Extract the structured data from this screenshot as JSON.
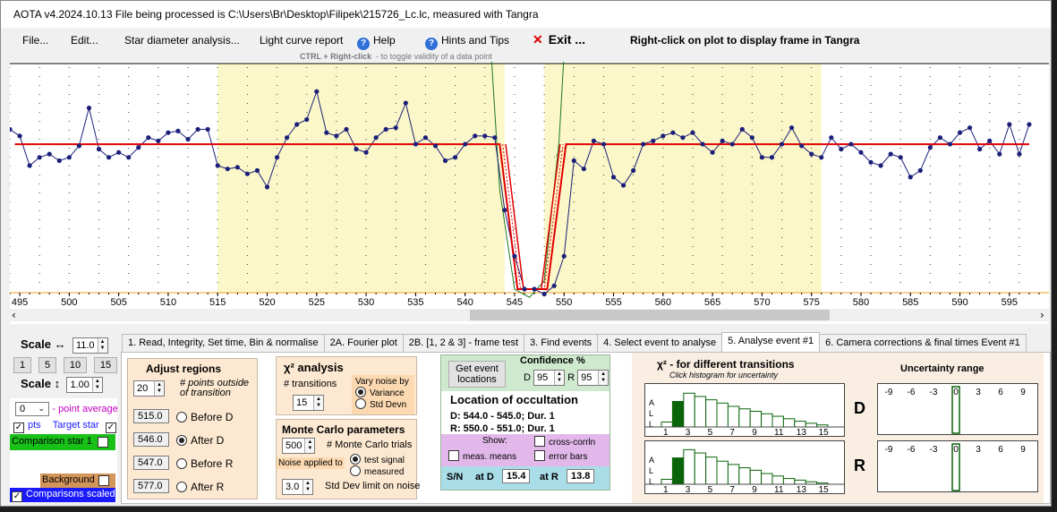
{
  "title": "AOTA v4.2024.10.13    File being processed is C:\\Users\\Br\\Desktop\\Filipek\\215726_Lc.lc, measured with Tangra",
  "menu": {
    "file": "File...",
    "edit": "Edit...",
    "star_diameter": "Star diameter analysis...",
    "light_curve": "Light curve report",
    "help": "Help",
    "hints": "Hints and Tips",
    "exit": "Exit ...",
    "right_click_hint": "Right-click on plot to display frame in Tangra"
  },
  "sub_hint": {
    "key": "CTRL + Right-click",
    "text": "- to toggle validity of a data point"
  },
  "plot": {
    "x_ticks": [
      "495",
      "500",
      "505",
      "510",
      "515",
      "520",
      "525",
      "530",
      "535",
      "540",
      "545",
      "550",
      "555",
      "560",
      "565",
      "570",
      "575",
      "580",
      "585",
      "590",
      "595"
    ],
    "x_range": [
      494,
      598
    ],
    "shaded_ranges": [
      [
        515,
        544
      ],
      [
        548,
        576
      ]
    ],
    "light_curve": {
      "x": [
        494,
        495,
        496,
        497,
        498,
        499,
        500,
        501,
        502,
        503,
        504,
        505,
        506,
        507,
        508,
        509,
        510,
        511,
        512,
        513,
        514,
        515,
        516,
        517,
        518,
        519,
        520,
        521,
        522,
        523,
        524,
        525,
        526,
        527,
        528,
        529,
        530,
        531,
        532,
        533,
        534,
        535,
        536,
        537,
        538,
        539,
        540,
        541,
        542,
        543,
        544,
        545,
        546,
        547,
        548,
        549,
        550,
        551,
        552,
        553,
        554,
        555,
        556,
        557,
        558,
        559,
        560,
        561,
        562,
        563,
        564,
        565,
        566,
        567,
        568,
        569,
        570,
        571,
        572,
        573,
        574,
        575,
        576,
        577,
        578,
        579,
        580,
        581,
        582,
        583,
        584,
        585,
        586,
        587,
        588,
        589,
        590,
        591,
        592,
        593,
        594,
        595,
        596,
        597
      ],
      "y": [
        0.97,
        0.93,
        0.75,
        0.8,
        0.82,
        0.78,
        0.8,
        0.87,
        1.1,
        0.85,
        0.8,
        0.83,
        0.8,
        0.86,
        0.92,
        0.9,
        0.95,
        0.96,
        0.91,
        0.97,
        0.97,
        0.75,
        0.73,
        0.74,
        0.7,
        0.72,
        0.62,
        0.8,
        0.92,
        1.0,
        1.03,
        1.2,
        0.95,
        0.93,
        0.97,
        0.85,
        0.83,
        0.92,
        0.97,
        0.98,
        1.13,
        0.88,
        0.92,
        0.87,
        0.78,
        0.8,
        0.88,
        0.93,
        0.93,
        0.92,
        0.48,
        0.2,
        0.0,
        0.0,
        -0.03,
        0.02,
        0.2,
        0.78,
        0.73,
        0.9,
        0.88,
        0.68,
        0.63,
        0.72,
        0.88,
        0.9,
        0.93,
        0.95,
        0.92,
        0.95,
        0.88,
        0.83,
        0.9,
        0.88,
        0.97,
        0.92,
        0.8,
        0.8,
        0.88,
        0.98,
        0.87,
        0.82,
        0.8,
        0.92,
        0.85,
        0.88,
        0.83,
        0.77,
        0.75,
        0.82,
        0.8,
        0.68,
        0.72,
        0.86,
        0.92,
        0.88,
        0.95,
        0.98,
        0.85,
        0.9,
        0.82,
        1.0,
        0.82,
        1.0
      ]
    },
    "model": {
      "baseline": 0.88,
      "bottom": 0.0,
      "D": [
        543.5,
        545.3
      ],
      "R": [
        548.3,
        550.2
      ]
    }
  },
  "left": {
    "scale_h_label": "Scale ↔",
    "scale_h_value": "11.0",
    "zoom_buttons": [
      "1",
      "5",
      "10",
      "15"
    ],
    "scale_v_label": "Scale ↕",
    "scale_v_value": "1.00",
    "avg_value": "0",
    "avg_label": "- point average",
    "opts_label": "pts",
    "target_star": "Target star",
    "comparison_star": "Comparison star 1",
    "background": "Background",
    "comparisons_scaled": "Comparisons scaled"
  },
  "tabs": [
    "1. Read, Integrity, Set time, Bin & normalise",
    "2A. Fourier plot",
    "2B. [1, 2 & 3] - frame test",
    "3. Find events",
    "4. Select event to analyse",
    "5. Analyse event #1",
    "6. Camera corrections & final times Event #1"
  ],
  "adjust": {
    "title": "Adjust regions",
    "points_value": "20",
    "points_label": "# points outside of transition",
    "rows": [
      {
        "value": "515.0",
        "label": "Before D"
      },
      {
        "value": "546.0",
        "label": "After D"
      },
      {
        "value": "547.0",
        "label": "Before R"
      },
      {
        "value": "577.0",
        "label": "After R"
      }
    ]
  },
  "chi": {
    "title": "χ² analysis",
    "transitions_label": "# transitions",
    "transitions_value": "15",
    "vary_title": "Vary noise by",
    "vary_options": [
      "Variance",
      "Std Devn"
    ]
  },
  "monte": {
    "title": "Monte Carlo parameters",
    "trials_value": "500",
    "trials_label": "# Monte Carlo trials",
    "noise_applied": "Noise applied to",
    "noise_options": [
      "test signal",
      "measured"
    ],
    "std_value": "3.0",
    "std_label": "Std Dev limit on noise"
  },
  "event": {
    "get_button": "Get event locations",
    "confidence_label": "Confidence %",
    "d_label": "D",
    "d_value": "95",
    "r_label": "R",
    "r_value": "95",
    "location_title": "Location of occultation",
    "d_line": "D: 544.0 - 545.0; Dur. 1",
    "r_line": "R: 550.0 - 551.0; Dur. 1",
    "show_label": "Show:",
    "show_options": [
      "meas. means",
      "cross-corrln",
      "error bars"
    ],
    "sn_label": "S/N",
    "at_d": "at D",
    "sn_d": "15.4",
    "at_r": "at R",
    "sn_r": "13.8"
  },
  "chisq_hist": {
    "title": "χ² - for different transitions",
    "subtitle": "Click histogram for uncertainty",
    "side_label": [
      "A",
      "L",
      "L"
    ],
    "x_labels": [
      "1",
      "3",
      "5",
      "7",
      "9",
      "11",
      "13",
      "15"
    ],
    "d_values": [
      0.12,
      0.62,
      0.82,
      0.74,
      0.66,
      0.58,
      0.5,
      0.44,
      0.38,
      0.32,
      0.26,
      0.2,
      0.14,
      0.09,
      0.05
    ],
    "r_values": [
      0.12,
      0.64,
      0.84,
      0.76,
      0.66,
      0.56,
      0.48,
      0.4,
      0.34,
      0.26,
      0.2,
      0.14,
      0.1,
      0.06,
      0.03
    ],
    "best_index": 1
  },
  "uncertainty": {
    "title": "Uncertainty range",
    "d_label": "D",
    "r_label": "R",
    "ticks": [
      "-9",
      "-6",
      "-3",
      "0",
      "3",
      "6",
      "9"
    ]
  },
  "colors": {
    "shade": "#fbf7c8",
    "points": "#1c1f7a",
    "model": "#e00000",
    "fit": "#1f7a1f",
    "green_block": "#0a640a",
    "accent": "#1a1aff"
  }
}
